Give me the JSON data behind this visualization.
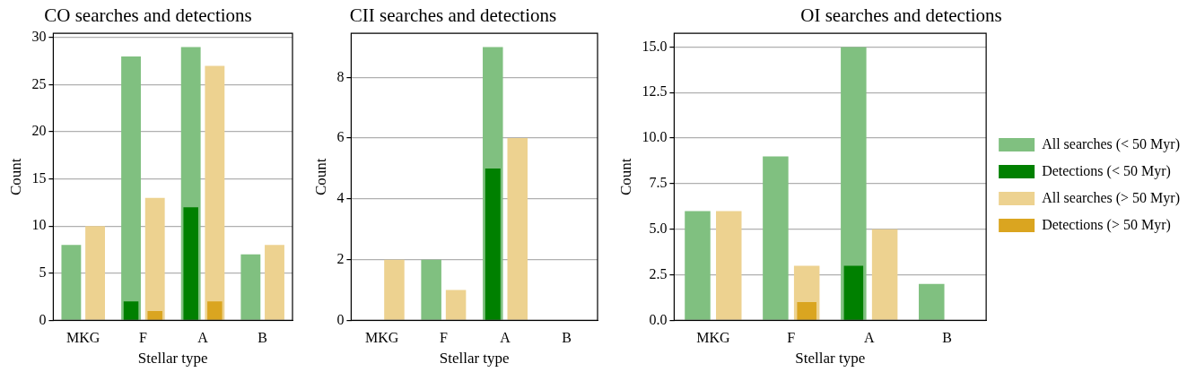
{
  "chart_data": [
    {
      "type": "bar",
      "title": "CO searches and detections",
      "xlabel": "Stellar type",
      "ylabel": "Count",
      "categories": [
        "MKG",
        "F",
        "A",
        "B"
      ],
      "ylim": [
        0,
        30.45
      ],
      "yticks": [
        0,
        5,
        10,
        15,
        20,
        25,
        30
      ],
      "grid": "y",
      "series": [
        {
          "color": "#80c080",
          "values": [
            8,
            28,
            29,
            7
          ]
        },
        {
          "color": "#008000",
          "values": [
            0,
            2,
            12,
            0
          ]
        },
        {
          "color": "#edd290",
          "values": [
            10,
            13,
            27,
            8
          ]
        },
        {
          "color": "#daa520",
          "values": [
            0,
            1,
            2,
            0
          ]
        }
      ]
    },
    {
      "type": "bar",
      "title": "CII searches and detections",
      "xlabel": "Stellar type",
      "ylabel": "Count",
      "categories": [
        "MKG",
        "F",
        "A",
        "B"
      ],
      "ylim": [
        0,
        9.45
      ],
      "yticks": [
        0,
        2,
        4,
        6,
        8
      ],
      "grid": "y",
      "series": [
        {
          "color": "#80c080",
          "values": [
            0,
            2,
            9,
            0
          ]
        },
        {
          "color": "#008000",
          "values": [
            0,
            0,
            5,
            0
          ]
        },
        {
          "color": "#edd290",
          "values": [
            2,
            1,
            6,
            0
          ]
        },
        {
          "color": "#daa520",
          "values": [
            0,
            0,
            0,
            0
          ]
        }
      ]
    },
    {
      "type": "bar",
      "title": "OI searches and detections",
      "xlabel": "Stellar type",
      "ylabel": "Count",
      "categories": [
        "MKG",
        "F",
        "A",
        "B"
      ],
      "ylim": [
        0,
        15.75
      ],
      "yticks": [
        {
          "value": 0,
          "label": "0.0"
        },
        {
          "value": 2.5,
          "label": "2.5"
        },
        {
          "value": 5,
          "label": "5.0"
        },
        {
          "value": 7.5,
          "label": "7.5"
        },
        {
          "value": 10,
          "label": "10.0"
        },
        {
          "value": 12.5,
          "label": "12.5"
        },
        {
          "value": 15,
          "label": "15.0"
        }
      ],
      "grid": "y",
      "legend": "right",
      "series": [
        {
          "name": "All searches (< 50 Myr)",
          "color": "#80c080",
          "values": [
            6,
            9,
            15,
            2
          ]
        },
        {
          "name": "Detections (< 50 Myr)",
          "color": "#008000",
          "values": [
            0,
            0,
            3,
            0
          ]
        },
        {
          "name": "All searches (> 50 Myr)",
          "color": "#edd290",
          "values": [
            6,
            3,
            5,
            0
          ]
        },
        {
          "name": "Detections (> 50 Myr)",
          "color": "#daa520",
          "values": [
            0,
            1,
            0,
            0
          ]
        }
      ]
    }
  ]
}
